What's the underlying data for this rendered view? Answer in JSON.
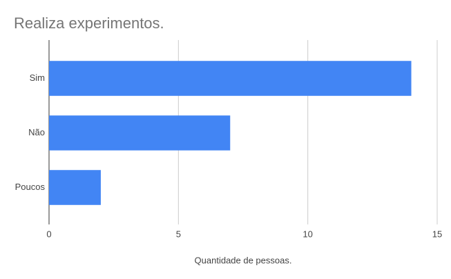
{
  "chart_data": {
    "type": "bar",
    "orientation": "horizontal",
    "title": "Realiza experimentos.",
    "categories": [
      "Sim",
      "Não",
      "Poucos"
    ],
    "values": [
      14,
      7,
      2
    ],
    "color": "#4285f4",
    "xlabel": "Quantidade de pessoas.",
    "xlim": [
      0,
      15
    ],
    "xticks": [
      0,
      5,
      10,
      15
    ],
    "grid": true
  }
}
